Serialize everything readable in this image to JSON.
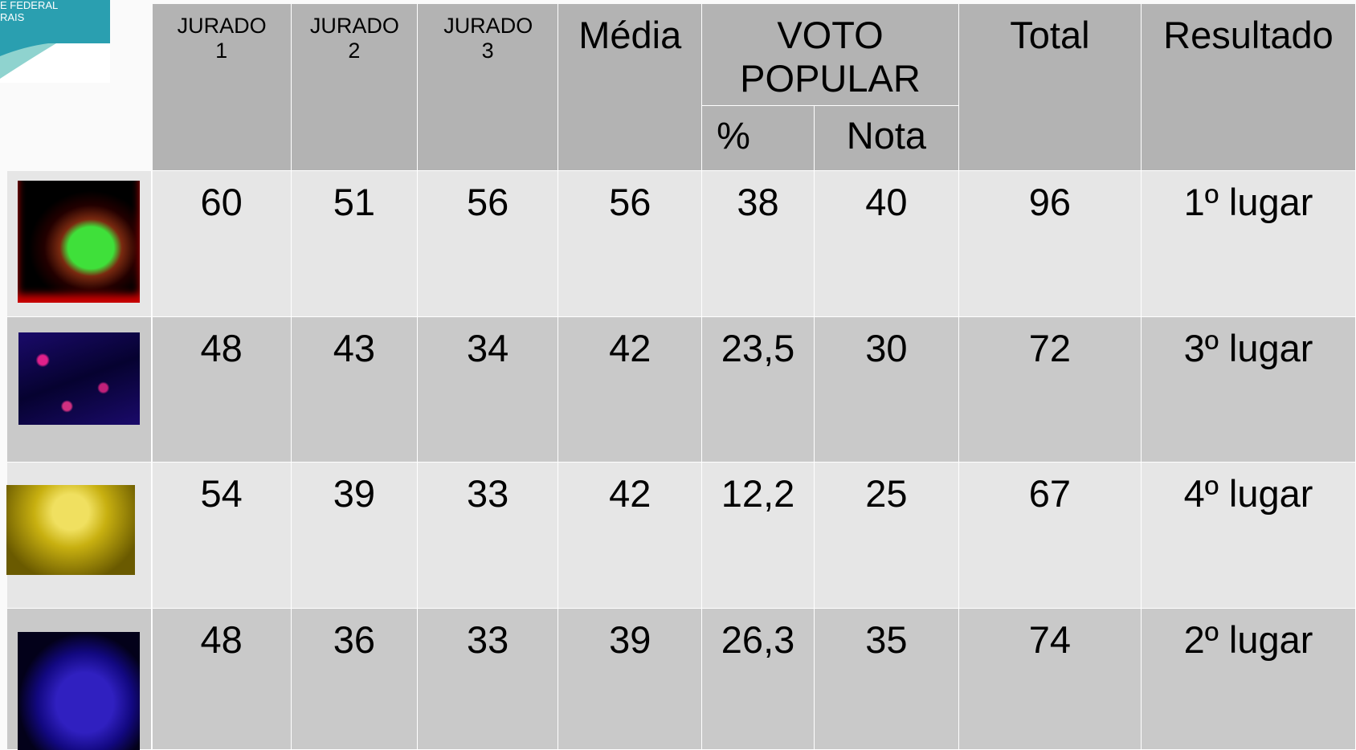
{
  "logo": {
    "lines": [
      "E FEDERAL",
      "RAIS"
    ]
  },
  "table": {
    "columns": [
      "JURADO 1",
      "JURADO 2",
      "JURADO 3",
      "Média",
      "VOTO POPULAR",
      "Total",
      "Resultado"
    ],
    "subcolumns": [
      "%",
      "Nota"
    ],
    "rows": [
      [
        "60",
        "51",
        "56",
        "56",
        "38",
        "40",
        "96",
        "1º lugar"
      ],
      [
        "48",
        "43",
        "34",
        "42",
        "23,5",
        "30",
        "72",
        "3º lugar"
      ],
      [
        "54",
        "39",
        "33",
        "42",
        "12,2",
        "25",
        "67",
        "4º lugar"
      ],
      [
        "48",
        "36",
        "33",
        "39",
        "26,3",
        "35",
        "74",
        "2º lugar"
      ]
    ]
  }
}
